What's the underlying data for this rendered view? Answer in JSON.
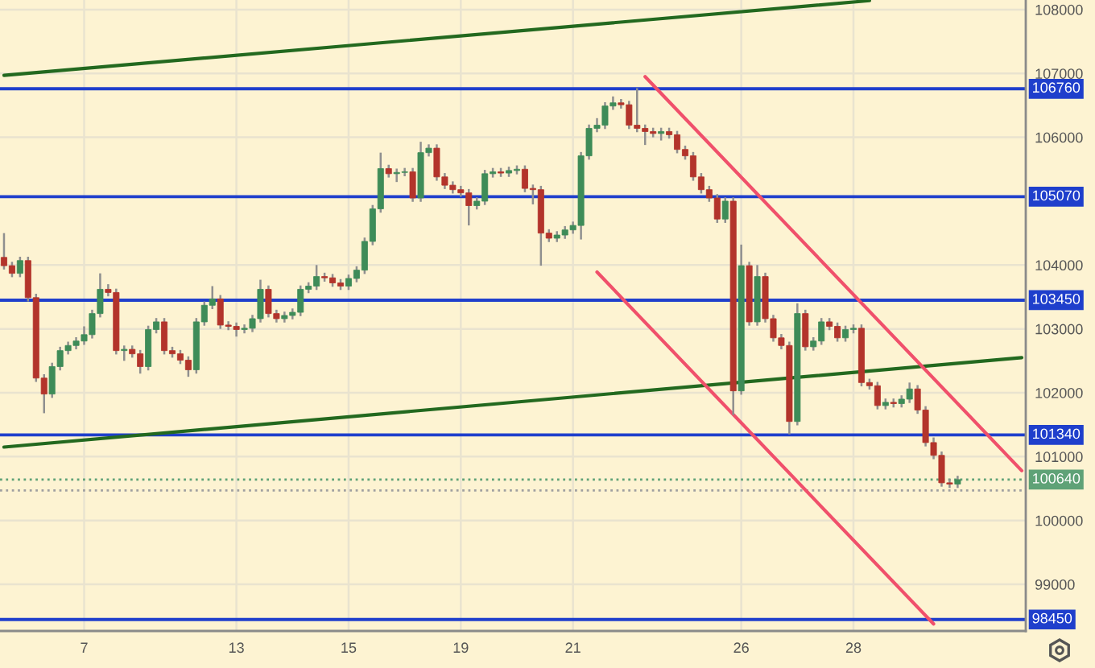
{
  "chart_data": {
    "type": "candlestick",
    "categories": [
      null,
      null,
      null,
      null,
      null,
      null,
      null,
      null,
      null,
      null,
      "7",
      null,
      null,
      null,
      null,
      null,
      null,
      null,
      null,
      null,
      null,
      null,
      null,
      null,
      null,
      null,
      null,
      null,
      null,
      "13",
      null,
      null,
      null,
      null,
      null,
      null,
      null,
      null,
      null,
      null,
      null,
      null,
      null,
      "15",
      null,
      null,
      null,
      null,
      null,
      null,
      null,
      null,
      null,
      null,
      null,
      null,
      null,
      "19",
      null,
      null,
      null,
      null,
      null,
      null,
      null,
      null,
      null,
      null,
      null,
      null,
      null,
      "21",
      null,
      null,
      null,
      null,
      null,
      null,
      null,
      null,
      null,
      null,
      null,
      null,
      null,
      null,
      null,
      null,
      null,
      null,
      null,
      null,
      "26",
      null,
      null,
      null,
      null,
      null,
      null,
      null,
      null,
      null,
      null,
      null,
      null,
      null,
      "28",
      null,
      null,
      null,
      null,
      null,
      null,
      null,
      null,
      null,
      null,
      null,
      null,
      null,
      null,
      null,
      null,
      null,
      null,
      null,
      null,
      null
    ],
    "ohlc": [
      [
        104120,
        104500,
        103930,
        103990
      ],
      [
        103990,
        104050,
        103810,
        103870
      ],
      [
        103870,
        104130,
        103810,
        104070
      ],
      [
        104070,
        104130,
        103430,
        103490
      ],
      [
        103490,
        103550,
        102170,
        102230
      ],
      [
        102230,
        102290,
        101680,
        101980
      ],
      [
        101980,
        102470,
        101920,
        102410
      ],
      [
        102410,
        102720,
        102350,
        102660
      ],
      [
        102660,
        102800,
        102600,
        102740
      ],
      [
        102740,
        102870,
        102680,
        102810
      ],
      [
        102810,
        103040,
        102750,
        102910
      ],
      [
        102910,
        103300,
        102850,
        103240
      ],
      [
        103240,
        103870,
        103180,
        103620
      ],
      [
        103620,
        103700,
        103510,
        103570
      ],
      [
        103570,
        103630,
        102600,
        102660
      ],
      [
        102660,
        102740,
        102500,
        102680
      ],
      [
        102680,
        102740,
        102550,
        102610
      ],
      [
        102610,
        102670,
        102300,
        102410
      ],
      [
        102410,
        103050,
        102350,
        102990
      ],
      [
        102990,
        103170,
        102930,
        103110
      ],
      [
        103110,
        103170,
        102600,
        102660
      ],
      [
        102660,
        102720,
        102550,
        102610
      ],
      [
        102610,
        102670,
        102450,
        102510
      ],
      [
        102510,
        102570,
        102250,
        102360
      ],
      [
        102360,
        103170,
        102300,
        103110
      ],
      [
        103110,
        103430,
        103050,
        103370
      ],
      [
        103370,
        103670,
        103310,
        103470
      ],
      [
        103470,
        103530,
        103000,
        103060
      ],
      [
        103060,
        103120,
        102980,
        103040
      ],
      [
        103040,
        103100,
        102880,
        102990
      ],
      [
        102990,
        103070,
        102930,
        103010
      ],
      [
        103010,
        103220,
        102950,
        103160
      ],
      [
        103160,
        103770,
        103100,
        103620
      ],
      [
        103620,
        103680,
        103180,
        103240
      ],
      [
        103240,
        103300,
        103100,
        103160
      ],
      [
        103160,
        103270,
        103100,
        103210
      ],
      [
        103210,
        103320,
        103150,
        103260
      ],
      [
        103260,
        103680,
        103200,
        103620
      ],
      [
        103620,
        103730,
        103560,
        103670
      ],
      [
        103670,
        104000,
        103610,
        103820
      ],
      [
        103820,
        103880,
        103740,
        103800
      ],
      [
        103800,
        103860,
        103660,
        103720
      ],
      [
        103720,
        103780,
        103610,
        103670
      ],
      [
        103670,
        103850,
        103610,
        103790
      ],
      [
        103790,
        103980,
        103730,
        103920
      ],
      [
        103920,
        104430,
        103860,
        104370
      ],
      [
        104370,
        104940,
        104310,
        104880
      ],
      [
        104880,
        105760,
        104820,
        105510
      ],
      [
        105510,
        105570,
        105370,
        105430
      ],
      [
        105430,
        105510,
        105300,
        105450
      ],
      [
        105450,
        105520,
        105390,
        105460
      ],
      [
        105460,
        105520,
        104990,
        105050
      ],
      [
        105050,
        105930,
        104990,
        105760
      ],
      [
        105760,
        105890,
        105700,
        105830
      ],
      [
        105830,
        105890,
        105320,
        105380
      ],
      [
        105380,
        105440,
        105190,
        105250
      ],
      [
        105250,
        105310,
        105120,
        105180
      ],
      [
        105180,
        105240,
        105070,
        105130
      ],
      [
        105130,
        105190,
        104620,
        104930
      ],
      [
        104930,
        105060,
        104870,
        105000
      ],
      [
        105000,
        105490,
        104940,
        105430
      ],
      [
        105430,
        105520,
        105370,
        105460
      ],
      [
        105460,
        105520,
        105380,
        105440
      ],
      [
        105440,
        105540,
        105380,
        105480
      ],
      [
        105480,
        105560,
        105420,
        105500
      ],
      [
        105500,
        105560,
        105140,
        105200
      ],
      [
        105200,
        105260,
        104950,
        105180
      ],
      [
        105180,
        105240,
        103990,
        104500
      ],
      [
        104500,
        104560,
        104360,
        104420
      ],
      [
        104420,
        104530,
        104360,
        104470
      ],
      [
        104470,
        104610,
        104410,
        104550
      ],
      [
        104550,
        104680,
        104490,
        104620
      ],
      [
        104620,
        105770,
        104400,
        105710
      ],
      [
        105710,
        106200,
        105650,
        106140
      ],
      [
        106140,
        106300,
        106080,
        106190
      ],
      [
        106190,
        106550,
        106130,
        106490
      ],
      [
        106490,
        106640,
        106430,
        106540
      ],
      [
        106540,
        106600,
        106450,
        106510
      ],
      [
        106510,
        106570,
        106130,
        106190
      ],
      [
        106190,
        106770,
        106080,
        106140
      ],
      [
        106140,
        106200,
        105880,
        106090
      ],
      [
        106090,
        106150,
        106000,
        106060
      ],
      [
        106060,
        106150,
        105950,
        106090
      ],
      [
        106090,
        106150,
        105980,
        106040
      ],
      [
        106040,
        106100,
        105750,
        105810
      ],
      [
        105810,
        105870,
        105650,
        105710
      ],
      [
        105710,
        105770,
        105320,
        105380
      ],
      [
        105380,
        105440,
        105120,
        105180
      ],
      [
        105180,
        105240,
        104990,
        105050
      ],
      [
        105050,
        105110,
        104660,
        104720
      ],
      [
        104720,
        105060,
        104660,
        105000
      ],
      [
        105000,
        105060,
        101650,
        102030
      ],
      [
        102030,
        104320,
        101970,
        103990
      ],
      [
        103990,
        104050,
        103050,
        103110
      ],
      [
        103110,
        104000,
        103050,
        103820
      ],
      [
        103820,
        103880,
        103100,
        103160
      ],
      [
        103160,
        103220,
        102800,
        102860
      ],
      [
        102860,
        102920,
        102680,
        102740
      ],
      [
        102740,
        102800,
        101350,
        101550
      ],
      [
        101550,
        103400,
        101490,
        103240
      ],
      [
        103240,
        103300,
        102660,
        102720
      ],
      [
        102720,
        102870,
        102660,
        102810
      ],
      [
        102810,
        103170,
        102750,
        103110
      ],
      [
        103110,
        103170,
        102980,
        103040
      ],
      [
        103040,
        103100,
        102800,
        102860
      ],
      [
        102860,
        103050,
        102800,
        102990
      ],
      [
        102990,
        103070,
        102930,
        103010
      ],
      [
        103010,
        103070,
        102100,
        102160
      ],
      [
        102160,
        102220,
        102050,
        102110
      ],
      [
        102110,
        102170,
        101740,
        101800
      ],
      [
        101800,
        101910,
        101740,
        101850
      ],
      [
        101850,
        101910,
        101770,
        101830
      ],
      [
        101830,
        101960,
        101770,
        101900
      ],
      [
        101900,
        102160,
        101840,
        102060
      ],
      [
        102060,
        102120,
        101670,
        101730
      ],
      [
        101730,
        101790,
        101160,
        101220
      ],
      [
        101220,
        101300,
        100960,
        101020
      ],
      [
        101020,
        101080,
        100530,
        100590
      ],
      [
        100590,
        100650,
        100510,
        100570
      ],
      [
        100570,
        100700,
        100510,
        100640
      ],
      null,
      null,
      null,
      null,
      null,
      null,
      null,
      null
    ],
    "colors": [
      "#b3342b",
      "#b3342b",
      "#3e8c58",
      "#b3342b",
      "#b3342b",
      "#b3342b",
      "#3e8c58",
      "#3e8c58",
      "#3e8c58",
      "#3e8c58",
      "#3e8c58",
      "#3e8c58",
      "#3e8c58",
      "#b3342b",
      "#b3342b",
      "#3e8c58",
      "#b3342b",
      "#b3342b",
      "#3e8c58",
      "#3e8c58",
      "#b3342b",
      "#b3342b",
      "#b3342b",
      "#b3342b",
      "#3e8c58",
      "#3e8c58",
      "#3e8c58",
      "#b3342b",
      "#b3342b",
      "#b3342b",
      "#3e8c58",
      "#3e8c58",
      "#3e8c58",
      "#b3342b",
      "#b3342b",
      "#3e8c58",
      "#3e8c58",
      "#3e8c58",
      "#3e8c58",
      "#3e8c58",
      "#b3342b",
      "#b3342b",
      "#b3342b",
      "#3e8c58",
      "#3e8c58",
      "#3e8c58",
      "#3e8c58",
      "#3e8c58",
      "#b3342b",
      "#3e8c58",
      "#3e8c58",
      "#b3342b",
      "#3e8c58",
      "#3e8c58",
      "#b3342b",
      "#b3342b",
      "#b3342b",
      "#b3342b",
      "#b3342b",
      "#3e8c58",
      "#3e8c58",
      "#3e8c58",
      "#b3342b",
      "#3e8c58",
      "#3e8c58",
      "#b3342b",
      "#b3342b",
      "#b3342b",
      "#b3342b",
      "#3e8c58",
      "#3e8c58",
      "#3e8c58",
      "#3e8c58",
      "#3e8c58",
      "#3e8c58",
      "#3e8c58",
      "#3e8c58",
      "#b3342b",
      "#b3342b",
      "#b3342b",
      "#b3342b",
      "#b3342b",
      "#3e8c58",
      "#b3342b",
      "#b3342b",
      "#b3342b",
      "#b3342b",
      "#b3342b",
      "#b3342b",
      "#b3342b",
      "#3e8c58",
      "#b3342b",
      "#3e8c58",
      "#b3342b",
      "#3e8c58",
      "#b3342b",
      "#b3342b",
      "#b3342b",
      "#b3342b",
      "#3e8c58",
      "#b3342b",
      "#3e8c58",
      "#3e8c58",
      "#b3342b",
      "#b3342b",
      "#3e8c58",
      "#3e8c58",
      "#b3342b",
      "#b3342b",
      "#b3342b",
      "#3e8c58",
      "#b3342b",
      "#3e8c58",
      "#3e8c58",
      "#b3342b",
      "#b3342b",
      "#b3342b",
      "#b3342b",
      "#b3342b",
      "#3e8c58",
      null,
      null,
      null,
      null,
      null,
      null,
      null,
      null
    ],
    "series": [
      {
        "type": "line",
        "color": "#23691f",
        "values": [
          106970,
          null,
          null,
          null,
          null,
          null,
          null,
          null,
          null,
          null,
          null,
          null,
          null,
          null,
          null,
          null,
          null,
          null,
          null,
          null,
          null,
          null,
          null,
          null,
          null,
          null,
          null,
          null,
          null,
          null,
          null,
          null,
          null,
          null,
          null,
          null,
          null,
          null,
          null,
          null,
          null,
          null,
          null,
          null,
          null,
          null,
          null,
          null,
          null,
          null,
          null,
          null,
          null,
          null,
          null,
          null,
          null,
          null,
          null,
          null,
          null,
          null,
          null,
          null,
          null,
          null,
          null,
          null,
          null,
          null,
          null,
          null,
          null,
          null,
          null,
          null,
          null,
          null,
          null,
          null,
          null,
          null,
          null,
          null,
          null,
          null,
          null,
          null,
          null,
          null,
          null,
          null,
          null,
          null,
          null,
          null,
          null,
          null,
          null,
          null,
          null,
          null,
          null,
          null,
          null,
          null,
          null,
          null,
          108140,
          null,
          null,
          null,
          null,
          null,
          null,
          null,
          null,
          null,
          null,
          null,
          null,
          null,
          null,
          null,
          null,
          null,
          null,
          null
        ]
      },
      {
        "type": "line",
        "color": "#23691f",
        "values": [
          101150,
          null,
          null,
          null,
          null,
          null,
          null,
          null,
          null,
          null,
          null,
          null,
          null,
          null,
          null,
          null,
          null,
          null,
          null,
          null,
          null,
          null,
          null,
          null,
          null,
          null,
          null,
          null,
          null,
          null,
          null,
          null,
          null,
          null,
          null,
          null,
          null,
          null,
          null,
          null,
          null,
          null,
          null,
          null,
          null,
          null,
          null,
          null,
          null,
          null,
          null,
          null,
          null,
          null,
          null,
          null,
          null,
          null,
          null,
          null,
          null,
          null,
          null,
          null,
          null,
          null,
          null,
          null,
          null,
          null,
          null,
          null,
          null,
          null,
          null,
          null,
          null,
          null,
          null,
          null,
          null,
          null,
          null,
          null,
          null,
          null,
          null,
          null,
          null,
          null,
          null,
          null,
          null,
          null,
          null,
          null,
          null,
          null,
          null,
          null,
          null,
          null,
          null,
          null,
          null,
          null,
          null,
          null,
          null,
          null,
          null,
          null,
          null,
          null,
          null,
          null,
          null,
          null,
          null,
          null,
          null,
          null,
          null,
          null,
          null,
          null,
          null,
          102550
        ]
      },
      {
        "type": "line",
        "color": "#f0506b",
        "values": [
          null,
          null,
          null,
          null,
          null,
          null,
          null,
          null,
          null,
          null,
          null,
          null,
          null,
          null,
          null,
          null,
          null,
          null,
          null,
          null,
          null,
          null,
          null,
          null,
          null,
          null,
          null,
          null,
          null,
          null,
          null,
          null,
          null,
          null,
          null,
          null,
          null,
          null,
          null,
          null,
          null,
          null,
          null,
          null,
          null,
          null,
          null,
          null,
          null,
          null,
          null,
          null,
          null,
          null,
          null,
          null,
          null,
          null,
          null,
          null,
          null,
          null,
          null,
          null,
          null,
          null,
          null,
          null,
          null,
          null,
          null,
          null,
          null,
          null,
          null,
          null,
          null,
          null,
          null,
          null,
          106950,
          null,
          null,
          null,
          null,
          null,
          null,
          null,
          null,
          null,
          null,
          null,
          null,
          null,
          null,
          null,
          null,
          null,
          null,
          null,
          null,
          null,
          null,
          null,
          null,
          null,
          null,
          null,
          null,
          null,
          null,
          null,
          null,
          null,
          null,
          null,
          null,
          null,
          null,
          null,
          null,
          null,
          null,
          null,
          null,
          null,
          null,
          100780
        ]
      },
      {
        "type": "line",
        "color": "#f0506b",
        "values": [
          null,
          null,
          null,
          null,
          null,
          null,
          null,
          null,
          null,
          null,
          null,
          null,
          null,
          null,
          null,
          null,
          null,
          null,
          null,
          null,
          null,
          null,
          null,
          null,
          null,
          null,
          null,
          null,
          null,
          null,
          null,
          null,
          null,
          null,
          null,
          null,
          null,
          null,
          null,
          null,
          null,
          null,
          null,
          null,
          null,
          null,
          null,
          null,
          null,
          null,
          null,
          null,
          null,
          null,
          null,
          null,
          null,
          null,
          null,
          null,
          null,
          null,
          null,
          null,
          null,
          null,
          null,
          null,
          null,
          null,
          null,
          null,
          null,
          null,
          103890,
          null,
          null,
          null,
          null,
          null,
          null,
          null,
          null,
          null,
          null,
          null,
          null,
          null,
          null,
          null,
          null,
          null,
          null,
          null,
          null,
          null,
          null,
          null,
          null,
          null,
          null,
          null,
          null,
          null,
          null,
          null,
          null,
          null,
          null,
          null,
          null,
          null,
          null,
          null,
          null,
          null,
          98380,
          null,
          null,
          null,
          null,
          null,
          null,
          null,
          null,
          null,
          null,
          null
        ]
      }
    ],
    "ref_lines": [
      {
        "axis": "y",
        "value": 106760,
        "label": "106760",
        "color": "#1f3fcc",
        "line_style": "solid"
      },
      {
        "axis": "y",
        "value": 105070,
        "label": "105070",
        "color": "#1f3fcc",
        "line_style": "solid"
      },
      {
        "axis": "y",
        "value": 103450,
        "label": "103450",
        "color": "#1f3fcc",
        "line_style": "solid"
      },
      {
        "axis": "y",
        "value": 101340,
        "label": "101340",
        "color": "#1f3fcc",
        "line_style": "solid"
      },
      {
        "axis": "y",
        "value": 98450,
        "label": "98450",
        "color": "#1f3fcc",
        "line_style": "solid"
      },
      {
        "axis": "y",
        "value": 100640,
        "label": "100640",
        "color": "#5fa277",
        "line_style": "dotted"
      },
      {
        "axis": "y",
        "value": 100470,
        "color": "#a0a0a0",
        "line_style": "dotted"
      }
    ],
    "ylim": [
      98270,
      108150
    ],
    "yticks": [
      99000,
      100000,
      101000,
      102000,
      103000,
      104000,
      106000,
      107000,
      108000
    ],
    "grid": true
  }
}
